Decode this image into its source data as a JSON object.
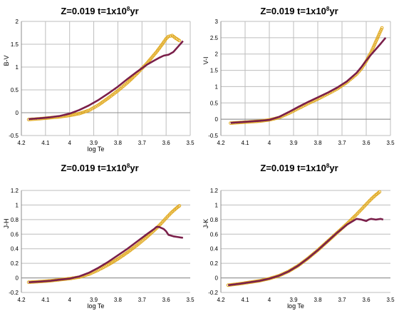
{
  "chart_data": [
    {
      "type": "line",
      "title_prefix": "Z=0.019   t=1x10",
      "title_exp": "8",
      "title_suffix": "yr",
      "xlabel": "log Te",
      "ylabel": "B-V",
      "xlim": [
        4.2,
        3.5
      ],
      "ylim": [
        -0.5,
        2
      ],
      "xticks": [
        "4.2",
        "4.1",
        "4",
        "3.9",
        "3.8",
        "3.7",
        "3.6",
        "3.5"
      ],
      "yticks": [
        "-0.5",
        "0",
        "0.5",
        "1",
        "1.5",
        "2"
      ],
      "grid": "vertical and horizontal major gridlines",
      "series": [
        {
          "color": "#e0a81c",
          "style": "open-circle markers",
          "x": [
            4.17,
            4.12,
            4.08,
            4.04,
            4.0,
            3.96,
            3.92,
            3.88,
            3.84,
            3.8,
            3.76,
            3.72,
            3.68,
            3.64,
            3.62,
            3.6,
            3.59,
            3.575,
            3.56,
            3.545
          ],
          "y": [
            -0.15,
            -0.13,
            -0.11,
            -0.09,
            -0.06,
            -0.02,
            0.05,
            0.17,
            0.32,
            0.48,
            0.66,
            0.86,
            1.08,
            1.33,
            1.47,
            1.62,
            1.67,
            1.69,
            1.63,
            1.58
          ]
        },
        {
          "color": "#7a1f4a",
          "style": "line",
          "x": [
            4.17,
            4.12,
            4.08,
            4.04,
            4.0,
            3.96,
            3.92,
            3.88,
            3.84,
            3.8,
            3.76,
            3.72,
            3.68,
            3.65,
            3.63,
            3.61,
            3.59,
            3.57,
            3.55,
            3.53
          ],
          "y": [
            -0.14,
            -0.12,
            -0.1,
            -0.07,
            -0.02,
            0.06,
            0.16,
            0.28,
            0.42,
            0.57,
            0.74,
            0.9,
            1.05,
            1.14,
            1.2,
            1.25,
            1.27,
            1.33,
            1.45,
            1.57
          ]
        }
      ]
    },
    {
      "type": "line",
      "title_prefix": "Z=0.019   t=1x10",
      "title_exp": "8",
      "title_suffix": "yr",
      "xlabel": "",
      "ylabel": "V-I",
      "xlim": [
        4.2,
        3.5
      ],
      "ylim": [
        -0.5,
        3
      ],
      "xticks": [
        "4.2",
        "4.1",
        "4",
        "3.9",
        "3.8",
        "3.7",
        "3.6",
        "3.5"
      ],
      "yticks": [
        "-0.5",
        "0",
        "0.5",
        "1",
        "1.5",
        "2",
        "2.5",
        "3"
      ],
      "grid": "vertical and horizontal major gridlines",
      "series": [
        {
          "color": "#e0a81c",
          "style": "open-circle markers",
          "x": [
            4.16,
            4.12,
            4.08,
            4.04,
            4.0,
            3.96,
            3.92,
            3.88,
            3.84,
            3.8,
            3.76,
            3.72,
            3.68,
            3.64,
            3.62,
            3.6,
            3.58,
            3.565,
            3.55,
            3.535
          ],
          "y": [
            -0.12,
            -0.1,
            -0.08,
            -0.06,
            -0.02,
            0.05,
            0.18,
            0.33,
            0.48,
            0.62,
            0.77,
            0.93,
            1.13,
            1.38,
            1.55,
            1.78,
            2.05,
            2.3,
            2.55,
            2.8
          ]
        },
        {
          "color": "#7a1f4a",
          "style": "line",
          "x": [
            4.16,
            4.12,
            4.08,
            4.04,
            4.0,
            3.96,
            3.92,
            3.88,
            3.84,
            3.8,
            3.76,
            3.72,
            3.68,
            3.64,
            3.62,
            3.6,
            3.58,
            3.56,
            3.54,
            3.52
          ],
          "y": [
            -0.11,
            -0.09,
            -0.07,
            -0.05,
            -0.02,
            0.07,
            0.22,
            0.38,
            0.53,
            0.67,
            0.81,
            0.97,
            1.16,
            1.42,
            1.6,
            1.8,
            1.98,
            2.15,
            2.32,
            2.5
          ]
        }
      ]
    },
    {
      "type": "line",
      "title_prefix": "Z=0.019   t=1x10",
      "title_exp": "8",
      "title_suffix": "yr",
      "xlabel": "log Te",
      "ylabel": "J-H",
      "xlim": [
        4.2,
        3.5
      ],
      "ylim": [
        -0.2,
        1.2
      ],
      "xticks": [
        "4.2",
        "4.1",
        "4",
        "3.9",
        "3.8",
        "3.7",
        "3.6",
        "3.5"
      ],
      "yticks": [
        "-0.2",
        "0",
        "0.2",
        "0.4",
        "0.6",
        "0.8",
        "1",
        "1.2"
      ],
      "grid": "horizontal major gridlines",
      "series": [
        {
          "color": "#e0a81c",
          "style": "open-circle markers",
          "x": [
            4.17,
            4.12,
            4.08,
            4.04,
            4.0,
            3.96,
            3.92,
            3.88,
            3.84,
            3.8,
            3.76,
            3.72,
            3.68,
            3.64,
            3.62,
            3.6,
            3.58,
            3.56,
            3.545
          ],
          "y": [
            -0.06,
            -0.05,
            -0.04,
            -0.025,
            -0.01,
            0.01,
            0.05,
            0.11,
            0.18,
            0.26,
            0.35,
            0.45,
            0.56,
            0.68,
            0.75,
            0.82,
            0.89,
            0.95,
            0.99
          ]
        },
        {
          "color": "#7a1f4a",
          "style": "line",
          "x": [
            4.17,
            4.12,
            4.08,
            4.04,
            4.0,
            3.96,
            3.92,
            3.88,
            3.84,
            3.8,
            3.76,
            3.72,
            3.68,
            3.65,
            3.64,
            3.63,
            3.61,
            3.6,
            3.59,
            3.57,
            3.55,
            3.53
          ],
          "y": [
            -0.06,
            -0.05,
            -0.04,
            -0.025,
            -0.01,
            0.02,
            0.07,
            0.14,
            0.22,
            0.31,
            0.4,
            0.5,
            0.6,
            0.67,
            0.7,
            0.7,
            0.67,
            0.64,
            0.59,
            0.57,
            0.56,
            0.55
          ]
        }
      ]
    },
    {
      "type": "line",
      "title_prefix": "Z=0.019   t=1x10",
      "title_exp": "8",
      "title_suffix": "yr",
      "xlabel": "log Te",
      "ylabel": "J-K",
      "xlim": [
        4.2,
        3.5
      ],
      "ylim": [
        -0.2,
        1.2
      ],
      "xticks": [
        "4.2",
        "4.1",
        "4",
        "3.9",
        "3.8",
        "3.7",
        "3.6",
        "3.5"
      ],
      "yticks": [
        "-0.2",
        "0",
        "0.2",
        "0.4",
        "0.6",
        "0.8",
        "1",
        "1.2"
      ],
      "grid": "horizontal major gridlines",
      "series": [
        {
          "color": "#e0a81c",
          "style": "open-circle markers",
          "x": [
            4.17,
            4.12,
            4.08,
            4.04,
            4.0,
            3.96,
            3.92,
            3.88,
            3.84,
            3.8,
            3.76,
            3.72,
            3.68,
            3.64,
            3.62,
            3.6,
            3.58,
            3.56,
            3.545
          ],
          "y": [
            -0.1,
            -0.08,
            -0.06,
            -0.04,
            -0.01,
            0.03,
            0.09,
            0.17,
            0.27,
            0.38,
            0.5,
            0.62,
            0.74,
            0.87,
            0.94,
            1.01,
            1.08,
            1.14,
            1.18
          ]
        },
        {
          "color": "#7a1f4a",
          "style": "line",
          "x": [
            4.17,
            4.12,
            4.08,
            4.04,
            4.0,
            3.96,
            3.92,
            3.88,
            3.84,
            3.8,
            3.76,
            3.72,
            3.68,
            3.65,
            3.64,
            3.62,
            3.6,
            3.59,
            3.58,
            3.56,
            3.54,
            3.53
          ],
          "y": [
            -0.1,
            -0.08,
            -0.06,
            -0.04,
            -0.01,
            0.03,
            0.09,
            0.17,
            0.27,
            0.38,
            0.5,
            0.62,
            0.73,
            0.79,
            0.81,
            0.8,
            0.78,
            0.8,
            0.81,
            0.8,
            0.81,
            0.8
          ]
        }
      ]
    }
  ]
}
